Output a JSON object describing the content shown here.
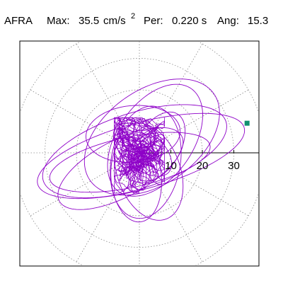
{
  "header": {
    "station": "AFRA",
    "max_label": "Max:",
    "max_value": "35.5",
    "max_unit": "cm/s",
    "max_unit_exp": "2",
    "per_label": "Per:",
    "per_value": "0.220 s",
    "ang_label": "Ang:",
    "ang_value": "15.3"
  },
  "colors": {
    "trace": "#8e00c8",
    "marker": "#109070",
    "grid": "#8a8a8a",
    "axis": "#000000",
    "frame": "#000000",
    "background": "#ffffff"
  },
  "chart_data": {
    "type": "scatter",
    "subtype": "polar particle-motion orbit",
    "title": "",
    "xlabel": "",
    "ylabel": "",
    "units": "cm/s2",
    "max_amplitude": 35.5,
    "angle_deg": 15.3,
    "radial_range": [
      0,
      40
    ],
    "grid": true,
    "grid_rings": [
      10,
      20,
      30,
      40
    ],
    "grid_spokes_deg": [
      0,
      30,
      60,
      90,
      120,
      150,
      180,
      210,
      240,
      270,
      300,
      330
    ],
    "ticks": [
      {
        "value": 10,
        "label": "10"
      },
      {
        "value": 20,
        "label": "20"
      },
      {
        "value": 30,
        "label": "30"
      }
    ],
    "marker_point": {
      "x": 34.2,
      "y": 9.4
    },
    "orbit_loops": [
      {
        "a": 34.0,
        "b": 10.5,
        "angle_deg": 15.3,
        "cx": 0.5,
        "cy": -1.0
      },
      {
        "a": 30.5,
        "b": 12.0,
        "angle_deg": 18.0,
        "cx": -1.5,
        "cy": 0.5
      },
      {
        "a": 26.0,
        "b": 8.0,
        "angle_deg": 12.0,
        "cx": -3.0,
        "cy": -3.0
      },
      {
        "a": 24.0,
        "b": 15.0,
        "angle_deg": 35.0,
        "cx": 4.0,
        "cy": 5.0
      },
      {
        "a": 22.0,
        "b": 9.0,
        "angle_deg": 28.0,
        "cx": -6.0,
        "cy": -5.0
      },
      {
        "a": 20.0,
        "b": 12.0,
        "angle_deg": 55.0,
        "cx": 5.0,
        "cy": 4.0
      },
      {
        "a": 18.0,
        "b": 11.0,
        "angle_deg": 80.0,
        "cx": 2.0,
        "cy": -3.0
      },
      {
        "a": 16.0,
        "b": 10.0,
        "angle_deg": 110.0,
        "cx": 3.0,
        "cy": -6.0
      },
      {
        "a": 14.0,
        "b": 8.0,
        "angle_deg": 95.0,
        "cx": -1.0,
        "cy": -8.0
      },
      {
        "a": 12.0,
        "b": 7.0,
        "angle_deg": 60.0,
        "cx": 6.0,
        "cy": 2.0
      },
      {
        "a": 15.0,
        "b": 9.0,
        "angle_deg": 5.0,
        "cx": -2.0,
        "cy": 6.0
      },
      {
        "a": 11.0,
        "b": 6.0,
        "angle_deg": 140.0,
        "cx": 1.0,
        "cy": 1.0
      }
    ],
    "core_cluster_radius": 8.0,
    "core_cluster_center": {
      "x": 0.0,
      "y": 0.0
    }
  }
}
